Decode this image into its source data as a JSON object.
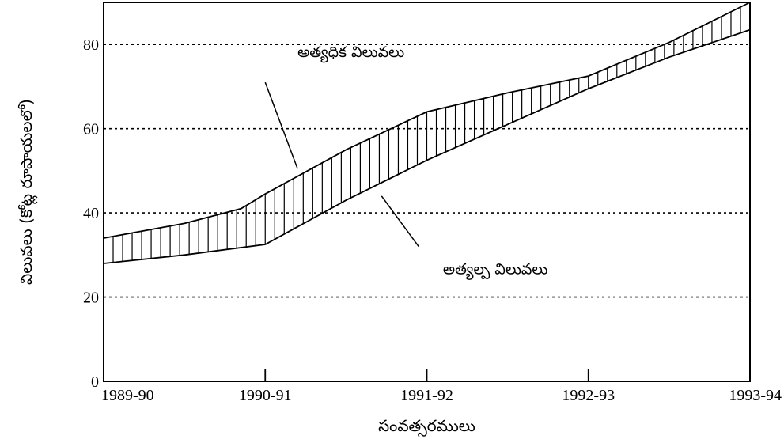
{
  "chart_data": {
    "type": "area",
    "title": "",
    "xlabel": "సంవత్సరములు",
    "ylabel": "విలువలు (కోట్ల రూపాయలలో)",
    "x_categories": [
      "1989-90",
      "1990-91",
      "1991-92",
      "1992-93",
      "1993-94"
    ],
    "yticks": [
      0,
      20,
      40,
      60,
      80
    ],
    "ylim": [
      0,
      90
    ],
    "grid": "horizontal dotted",
    "series": [
      {
        "name": "అత్యధిక విలువలు",
        "points": [
          [
            0.0,
            34
          ],
          [
            0.5,
            37.5
          ],
          [
            0.85,
            41
          ],
          [
            1.0,
            44.5
          ],
          [
            1.5,
            55
          ],
          [
            2.0,
            64
          ],
          [
            2.5,
            68.5
          ],
          [
            3.0,
            72.5
          ],
          [
            3.5,
            80.5
          ],
          [
            4.0,
            90
          ]
        ]
      },
      {
        "name": "అత్యల్ప విలువలు",
        "points": [
          [
            0.0,
            28
          ],
          [
            0.5,
            30
          ],
          [
            1.0,
            32.5
          ],
          [
            1.5,
            43
          ],
          [
            2.0,
            52.5
          ],
          [
            2.5,
            61
          ],
          [
            3.0,
            69.5
          ],
          [
            3.5,
            77
          ],
          [
            4.0,
            83.5
          ]
        ]
      }
    ],
    "annotations": [
      {
        "text": "అత్యధిక విలువలు",
        "x": 1.2,
        "y": 77
      },
      {
        "text": "అత్యల్ప విలువలు",
        "x": 2.1,
        "y": 25.5
      }
    ]
  }
}
